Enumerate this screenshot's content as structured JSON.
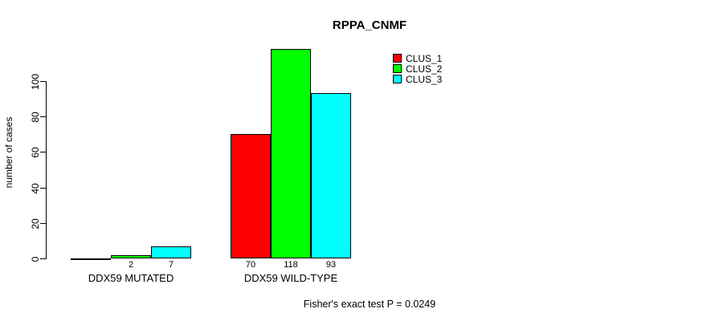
{
  "chart_data": {
    "type": "bar",
    "title": "RPPA_CNMF",
    "ylabel": "number of cases",
    "xlabel": "",
    "ylim": [
      0,
      100
    ],
    "yticks": [
      0,
      20,
      40,
      60,
      80,
      100
    ],
    "categories": [
      "DDX59 MUTATED",
      "DDX59 WILD-TYPE"
    ],
    "series": [
      {
        "name": "CLUS_1",
        "color": "#ff0000",
        "values": [
          0,
          70
        ]
      },
      {
        "name": "CLUS_2",
        "color": "#00ff00",
        "values": [
          2,
          118
        ]
      },
      {
        "name": "CLUS_3",
        "color": "#00ffff",
        "values": [
          7,
          93
        ]
      }
    ],
    "bar_value_labels": [
      [
        "",
        "2",
        "7"
      ],
      [
        "70",
        "118",
        "93"
      ]
    ],
    "legend": {
      "position": "top-right",
      "entries": [
        "CLUS_1",
        "CLUS_2",
        "CLUS_3"
      ]
    },
    "annotation": "Fisher's exact test P = 0.0249",
    "grid": false,
    "bar_border_color": "#000000",
    "background": "#ffffff"
  }
}
